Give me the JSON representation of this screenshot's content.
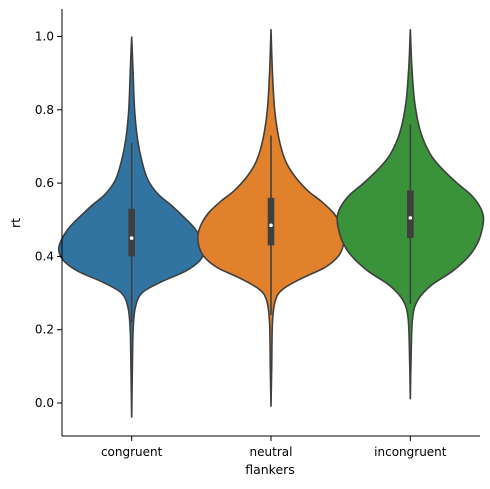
{
  "chart_data": {
    "type": "violin",
    "xlabel": "flankers",
    "ylabel": "rt",
    "categories": [
      "congruent",
      "neutral",
      "incongruent"
    ],
    "ylim": [
      -0.09,
      1.075
    ],
    "yticks": [
      "0.0",
      "0.2",
      "0.4",
      "0.6",
      "0.8",
      "1.0"
    ],
    "grid": false,
    "violins": [
      {
        "name": "congruent",
        "color": "#3274a1",
        "min": -0.04,
        "max": 1.0,
        "q1": 0.4,
        "median": 0.45,
        "q3": 0.53,
        "whisker_low": 0.22,
        "whisker_high": 0.71,
        "density": [
          [
            -0.04,
            0.0
          ],
          [
            0.1,
            0.01
          ],
          [
            0.2,
            0.02
          ],
          [
            0.26,
            0.05
          ],
          [
            0.3,
            0.14
          ],
          [
            0.33,
            0.4
          ],
          [
            0.36,
            0.74
          ],
          [
            0.39,
            0.94
          ],
          [
            0.42,
            1.0
          ],
          [
            0.45,
            0.95
          ],
          [
            0.48,
            0.85
          ],
          [
            0.51,
            0.7
          ],
          [
            0.54,
            0.54
          ],
          [
            0.57,
            0.36
          ],
          [
            0.61,
            0.22
          ],
          [
            0.66,
            0.14
          ],
          [
            0.72,
            0.08
          ],
          [
            0.8,
            0.04
          ],
          [
            0.9,
            0.02
          ],
          [
            1.0,
            0.0
          ]
        ]
      },
      {
        "name": "neutral",
        "color": "#e1812c",
        "min": -0.01,
        "max": 1.02,
        "q1": 0.43,
        "median": 0.485,
        "q3": 0.56,
        "whisker_low": 0.24,
        "whisker_high": 0.73,
        "density": [
          [
            -0.01,
            0.0
          ],
          [
            0.1,
            0.01
          ],
          [
            0.22,
            0.02
          ],
          [
            0.28,
            0.06
          ],
          [
            0.31,
            0.16
          ],
          [
            0.34,
            0.42
          ],
          [
            0.37,
            0.74
          ],
          [
            0.4,
            0.92
          ],
          [
            0.43,
            0.99
          ],
          [
            0.46,
            1.0
          ],
          [
            0.49,
            0.95
          ],
          [
            0.52,
            0.85
          ],
          [
            0.55,
            0.69
          ],
          [
            0.58,
            0.5
          ],
          [
            0.62,
            0.32
          ],
          [
            0.66,
            0.2
          ],
          [
            0.72,
            0.11
          ],
          [
            0.8,
            0.05
          ],
          [
            0.9,
            0.02
          ],
          [
            1.02,
            0.0
          ]
        ]
      },
      {
        "name": "incongruent",
        "color": "#3a923a",
        "min": 0.01,
        "max": 1.02,
        "q1": 0.45,
        "median": 0.505,
        "q3": 0.58,
        "whisker_low": 0.27,
        "whisker_high": 0.76,
        "density": [
          [
            0.01,
            0.0
          ],
          [
            0.12,
            0.01
          ],
          [
            0.23,
            0.03
          ],
          [
            0.28,
            0.1
          ],
          [
            0.32,
            0.28
          ],
          [
            0.36,
            0.58
          ],
          [
            0.4,
            0.8
          ],
          [
            0.44,
            0.93
          ],
          [
            0.48,
            0.99
          ],
          [
            0.51,
            1.0
          ],
          [
            0.54,
            0.94
          ],
          [
            0.57,
            0.82
          ],
          [
            0.6,
            0.64
          ],
          [
            0.64,
            0.43
          ],
          [
            0.68,
            0.27
          ],
          [
            0.74,
            0.14
          ],
          [
            0.82,
            0.06
          ],
          [
            0.92,
            0.02
          ],
          [
            1.02,
            0.0
          ]
        ]
      }
    ]
  }
}
